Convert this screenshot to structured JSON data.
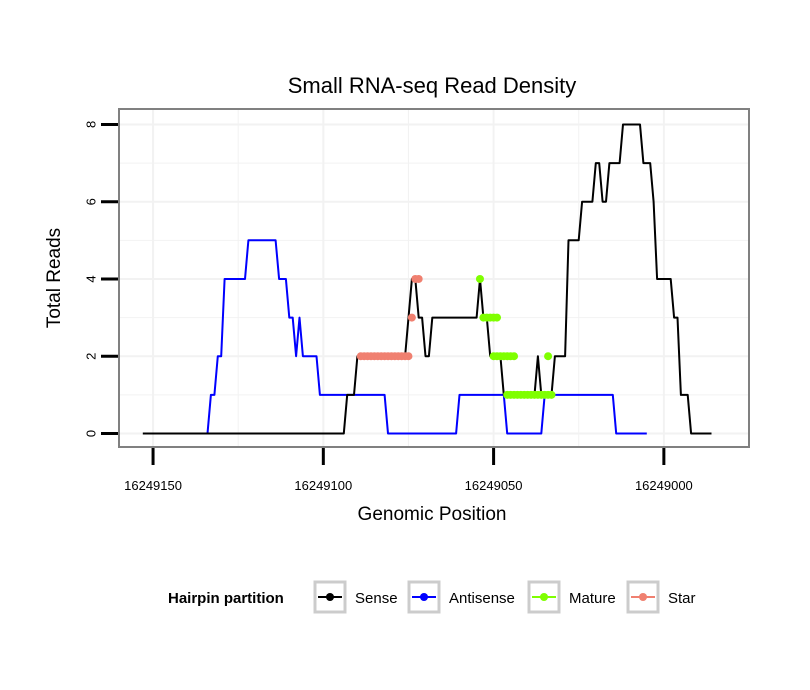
{
  "chart_data": {
    "type": "line",
    "title": "Small RNA-seq Read Density",
    "xlabel": "Genomic Position",
    "ylabel": "Total Reads",
    "x_reversed": true,
    "xlim": [
      16249160,
      16248975
    ],
    "ylim": [
      -0.35,
      8.4
    ],
    "x_ticks": [
      16249150,
      16249100,
      16249050,
      16249000
    ],
    "x_tick_labels": [
      "16249150",
      "16249100",
      "16249050",
      "16249000"
    ],
    "y_ticks": [
      0,
      2,
      4,
      6,
      8
    ],
    "y_tick_labels": [
      "0",
      "2",
      "4",
      "6",
      "8"
    ],
    "grid": true,
    "legend": {
      "title": "Hairpin partition",
      "position": "bottom",
      "entries": [
        "Sense",
        "Antisense",
        "Mature",
        "Star"
      ]
    },
    "colors": {
      "Sense": "#000000",
      "Antisense": "#0000ff",
      "Mature": "#7fff00",
      "Star": "#f08070",
      "panel_border": "#808080",
      "grid": "#f2f2f2",
      "legend_key_border": "#cccccc"
    },
    "series": [
      {
        "name": "Sense",
        "style": "line",
        "points": [
          [
            16249153,
            0
          ],
          [
            16249094,
            0
          ],
          [
            16249093,
            1
          ],
          [
            16249091,
            1
          ],
          [
            16249090,
            2
          ],
          [
            16249076,
            2
          ],
          [
            16249075,
            3
          ],
          [
            16249074,
            4
          ],
          [
            16249073,
            4
          ],
          [
            16249072,
            3
          ],
          [
            16249071,
            3
          ],
          [
            16249070,
            2
          ],
          [
            16249069,
            2
          ],
          [
            16249068,
            3
          ],
          [
            16249055,
            3
          ],
          [
            16249054,
            4
          ],
          [
            16249053,
            3
          ],
          [
            16249052,
            3
          ],
          [
            16249051,
            2
          ],
          [
            16249048,
            2
          ],
          [
            16249047,
            1
          ],
          [
            16249038,
            1
          ],
          [
            16249037,
            2
          ],
          [
            16249036,
            1
          ],
          [
            16249033,
            1
          ],
          [
            16249032,
            2
          ],
          [
            16249029,
            2
          ],
          [
            16249028,
            5
          ],
          [
            16249025,
            5
          ],
          [
            16249024,
            6
          ],
          [
            16249021,
            6
          ],
          [
            16249020,
            7
          ],
          [
            16249019,
            7
          ],
          [
            16249018,
            6
          ],
          [
            16249017,
            6
          ],
          [
            16249016,
            7
          ],
          [
            16249013,
            7
          ],
          [
            16249012,
            8
          ],
          [
            16249007,
            8
          ],
          [
            16249006,
            7
          ],
          [
            16249004,
            7
          ],
          [
            16249003,
            6
          ],
          [
            16249002,
            4
          ],
          [
            16248998,
            4
          ],
          [
            16248997,
            3
          ],
          [
            16248996,
            3
          ],
          [
            16248995,
            1
          ],
          [
            16248993,
            1
          ],
          [
            16248992,
            0
          ],
          [
            16248986,
            0
          ]
        ]
      },
      {
        "name": "Antisense",
        "style": "line",
        "points": [
          [
            16249134,
            0
          ],
          [
            16249133,
            1
          ],
          [
            16249132,
            1
          ],
          [
            16249131,
            2
          ],
          [
            16249130,
            2
          ],
          [
            16249129,
            4
          ],
          [
            16249123,
            4
          ],
          [
            16249122,
            5
          ],
          [
            16249114,
            5
          ],
          [
            16249113,
            4
          ],
          [
            16249111,
            4
          ],
          [
            16249110,
            3
          ],
          [
            16249109,
            3
          ],
          [
            16249108,
            2
          ],
          [
            16249107,
            3
          ],
          [
            16249106,
            2
          ],
          [
            16249102,
            2
          ],
          [
            16249101,
            1
          ],
          [
            16249082,
            1
          ],
          [
            16249081,
            0
          ],
          [
            16249061,
            0
          ],
          [
            16249060,
            1
          ],
          [
            16249047,
            1
          ],
          [
            16249046,
            0
          ],
          [
            16249036,
            0
          ],
          [
            16249035,
            1
          ],
          [
            16249015,
            1
          ],
          [
            16249014,
            0
          ],
          [
            16249005,
            0
          ]
        ]
      },
      {
        "name": "Mature",
        "style": "points",
        "points": [
          [
            16249054,
            4
          ],
          [
            16249053,
            3
          ],
          [
            16249052,
            3
          ],
          [
            16249051,
            3
          ],
          [
            16249050,
            3
          ],
          [
            16249049,
            3
          ],
          [
            16249050,
            2
          ],
          [
            16249049,
            2
          ],
          [
            16249048,
            2
          ],
          [
            16249047,
            2
          ],
          [
            16249046,
            2
          ],
          [
            16249045,
            2
          ],
          [
            16249044,
            2
          ],
          [
            16249046,
            1
          ],
          [
            16249045,
            1
          ],
          [
            16249044,
            1
          ],
          [
            16249043,
            1
          ],
          [
            16249042,
            1
          ],
          [
            16249041,
            1
          ],
          [
            16249040,
            1
          ],
          [
            16249039,
            1
          ],
          [
            16249038,
            1
          ],
          [
            16249037,
            1
          ],
          [
            16249036,
            1
          ],
          [
            16249035,
            1
          ],
          [
            16249034,
            1
          ],
          [
            16249033,
            1
          ],
          [
            16249034,
            2
          ]
        ]
      },
      {
        "name": "Star",
        "style": "points",
        "points": [
          [
            16249089,
            2
          ],
          [
            16249088,
            2
          ],
          [
            16249087,
            2
          ],
          [
            16249086,
            2
          ],
          [
            16249085,
            2
          ],
          [
            16249084,
            2
          ],
          [
            16249083,
            2
          ],
          [
            16249082,
            2
          ],
          [
            16249081,
            2
          ],
          [
            16249080,
            2
          ],
          [
            16249079,
            2
          ],
          [
            16249078,
            2
          ],
          [
            16249077,
            2
          ],
          [
            16249076,
            2
          ],
          [
            16249075,
            2
          ],
          [
            16249074,
            3
          ],
          [
            16249073,
            4
          ],
          [
            16249072,
            4
          ]
        ]
      }
    ]
  }
}
